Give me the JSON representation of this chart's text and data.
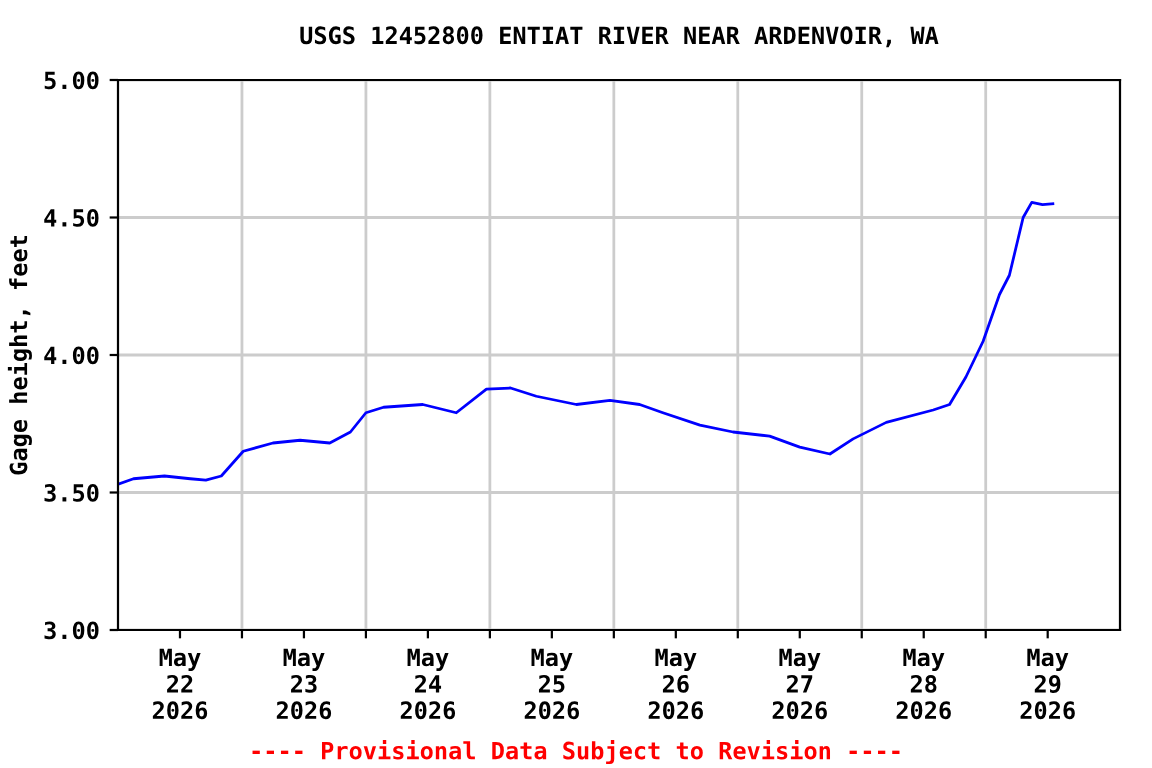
{
  "chart_data": {
    "type": "line",
    "title": "USGS 12452800 ENTIAT RIVER NEAR ARDENVOIR, WA",
    "ylabel": "Gage height, feet",
    "annotations": [
      "---- Provisional Data Subject to Revision ----"
    ],
    "xlim": [
      "2026-05-22T00:00",
      "2026-05-30T02:00"
    ],
    "xticks": [
      {
        "value": "2026-05-22T12:00",
        "label": "May\n22\n2026"
      },
      {
        "value": "2026-05-23T00:00",
        "label": null
      },
      {
        "value": "2026-05-23T12:00",
        "label": "May\n23\n2026"
      },
      {
        "value": "2026-05-24T00:00",
        "label": null
      },
      {
        "value": "2026-05-24T12:00",
        "label": "May\n24\n2026"
      },
      {
        "value": "2026-05-25T00:00",
        "label": null
      },
      {
        "value": "2026-05-25T12:00",
        "label": "May\n25\n2026"
      },
      {
        "value": "2026-05-26T00:00",
        "label": null
      },
      {
        "value": "2026-05-26T12:00",
        "label": "May\n26\n2026"
      },
      {
        "value": "2026-05-27T00:00",
        "label": null
      },
      {
        "value": "2026-05-27T12:00",
        "label": "May\n27\n2026"
      },
      {
        "value": "2026-05-28T00:00",
        "label": null
      },
      {
        "value": "2026-05-28T12:00",
        "label": "May\n28\n2026"
      },
      {
        "value": "2026-05-29T00:00",
        "label": null
      },
      {
        "value": "2026-05-29T12:00",
        "label": "May\n29\n2026"
      }
    ],
    "ylim": [
      3.0,
      5.0
    ],
    "yticks": [
      {
        "value": 3.0,
        "label": "3.00"
      },
      {
        "value": 3.5,
        "label": "3.50"
      },
      {
        "value": 4.0,
        "label": "4.00"
      },
      {
        "value": 4.5,
        "label": "4.50"
      },
      {
        "value": 5.0,
        "label": "5.00"
      }
    ],
    "grid": true,
    "marker": "none",
    "line_style": "solid",
    "series": [
      {
        "color": "#0000ff",
        "x": [
          "2026-05-22T00:00",
          "2026-05-22T03:00",
          "2026-05-22T09:00",
          "2026-05-22T14:00",
          "2026-05-22T17:00",
          "2026-05-22T20:00",
          "2026-05-23T00:15",
          "2026-05-23T06:00",
          "2026-05-23T11:15",
          "2026-05-23T17:00",
          "2026-05-23T21:00",
          "2026-05-24T00:00",
          "2026-05-24T03:25",
          "2026-05-24T11:00",
          "2026-05-24T17:30",
          "2026-05-24T23:20",
          "2026-05-25T04:00",
          "2026-05-25T09:00",
          "2026-05-25T16:45",
          "2026-05-25T23:15",
          "2026-05-26T05:00",
          "2026-05-26T09:30",
          "2026-05-26T16:40",
          "2026-05-26T23:05",
          "2026-05-27T06:10",
          "2026-05-27T12:00",
          "2026-05-27T17:50",
          "2026-05-27T22:20",
          "2026-05-28T04:45",
          "2026-05-28T13:50",
          "2026-05-28T17:00",
          "2026-05-28T20:10",
          "2026-05-28T23:30",
          "2026-05-29T02:40",
          "2026-05-29T04:35",
          "2026-05-29T07:15",
          "2026-05-29T08:55",
          "2026-05-29T11:00",
          "2026-05-29T13:00"
        ],
        "values": [
          3.53,
          3.55,
          3.56,
          3.55,
          3.545,
          3.56,
          3.65,
          3.68,
          3.69,
          3.68,
          3.72,
          3.79,
          3.81,
          3.82,
          3.79,
          3.876,
          3.88,
          3.85,
          3.82,
          3.835,
          3.82,
          3.79,
          3.745,
          3.72,
          3.705,
          3.665,
          3.64,
          3.695,
          3.755,
          3.8,
          3.82,
          3.92,
          4.05,
          4.22,
          4.29,
          4.5,
          4.555,
          4.547,
          4.55
        ]
      }
    ]
  }
}
